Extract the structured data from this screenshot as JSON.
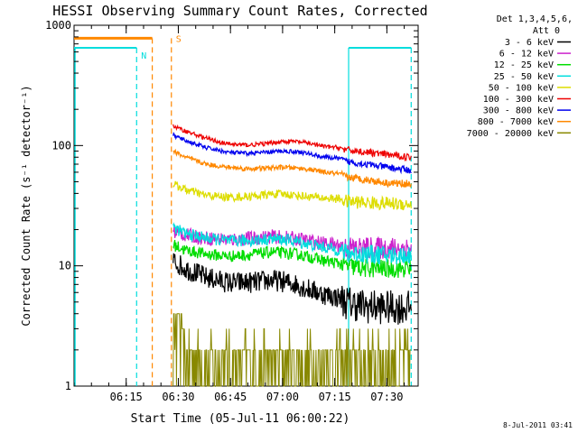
{
  "chart_data": {
    "type": "line",
    "title": "HESSI Observing Summary Count Rates, Corrected",
    "xlabel": "Start Time (05-Jul-11 06:00:22)",
    "ylabel": "Corrected Count Rate (s⁻¹ detector⁻¹)",
    "y_scale": "log",
    "ylim": [
      1,
      1000
    ],
    "xlim_minutes": [
      0,
      99
    ],
    "x_tick_labels": [
      "06:15",
      "06:30",
      "06:45",
      "07:00",
      "07:15",
      "07:30"
    ],
    "x_tick_minutes": [
      15,
      30,
      45,
      60,
      75,
      90
    ],
    "y_tick_labels": [
      "1",
      "10",
      "100",
      "1000"
    ],
    "y_tick_values": [
      1,
      10,
      100,
      1000
    ],
    "legend": {
      "placement": "right",
      "header_line1": "Det 1,3,4,5,6,",
      "header_line2": "Att 0"
    },
    "series": [
      {
        "name": "3 - 6 keV",
        "color": "#000000",
        "points": [
          [
            28.5,
            11
          ],
          [
            32,
            9.5
          ],
          [
            38,
            8
          ],
          [
            45,
            7.2
          ],
          [
            52,
            7.3
          ],
          [
            57,
            7.6
          ],
          [
            60,
            7.4
          ],
          [
            64,
            7
          ],
          [
            68,
            6.3
          ],
          [
            72,
            5.8
          ],
          [
            76.5,
            5.4
          ],
          [
            78,
            5
          ],
          [
            84,
            4.6
          ],
          [
            90,
            4.5
          ],
          [
            97,
            4.5
          ]
        ]
      },
      {
        "name": "6 - 12 keV",
        "color": "#cc22cc",
        "points": [
          [
            28.5,
            19.5
          ],
          [
            32,
            18
          ],
          [
            38,
            17
          ],
          [
            45,
            16.5
          ],
          [
            52,
            17
          ],
          [
            57,
            17.5
          ],
          [
            60,
            17.2
          ],
          [
            64,
            16.8
          ],
          [
            68,
            16
          ],
          [
            72,
            15.3
          ],
          [
            76.5,
            14.8
          ],
          [
            78,
            14.2
          ],
          [
            84,
            14
          ],
          [
            90,
            14
          ],
          [
            97,
            14
          ]
        ]
      },
      {
        "name": "12 - 25 keV",
        "color": "#00dd00",
        "points": [
          [
            28.5,
            15
          ],
          [
            32,
            13.5
          ],
          [
            38,
            12.5
          ],
          [
            45,
            12
          ],
          [
            52,
            12.5
          ],
          [
            57,
            13
          ],
          [
            60,
            12.8
          ],
          [
            64,
            12.5
          ],
          [
            68,
            11.8
          ],
          [
            72,
            11
          ],
          [
            76.5,
            10.5
          ],
          [
            78,
            10
          ],
          [
            84,
            9.5
          ],
          [
            90,
            9.5
          ],
          [
            97,
            9.5
          ]
        ]
      },
      {
        "name": "25 - 50 keV",
        "color": "#00dddd",
        "points": [
          [
            28.5,
            21
          ],
          [
            32,
            18.5
          ],
          [
            38,
            17
          ],
          [
            45,
            16
          ],
          [
            52,
            16.3
          ],
          [
            57,
            16.8
          ],
          [
            60,
            16.5
          ],
          [
            64,
            16
          ],
          [
            68,
            15
          ],
          [
            72,
            14.2
          ],
          [
            76.5,
            13.5
          ],
          [
            78,
            12.8
          ],
          [
            84,
            12.5
          ],
          [
            90,
            12.2
          ],
          [
            97,
            12.3
          ]
        ]
      },
      {
        "name": "50 - 100 keV",
        "color": "#dddd00",
        "points": [
          [
            28.5,
            48
          ],
          [
            32,
            43
          ],
          [
            38,
            38.5
          ],
          [
            45,
            37
          ],
          [
            52,
            38
          ],
          [
            57,
            39.5
          ],
          [
            60,
            39.5
          ],
          [
            64,
            38.5
          ],
          [
            68,
            37.5
          ],
          [
            72,
            36.5
          ],
          [
            76.5,
            36
          ],
          [
            78,
            34.5
          ],
          [
            84,
            33.5
          ],
          [
            90,
            33
          ],
          [
            97,
            32.5
          ]
        ]
      },
      {
        "name": "100 - 300 keV",
        "color": "#ee0000",
        "points": [
          [
            28.5,
            145
          ],
          [
            32,
            132
          ],
          [
            38,
            115
          ],
          [
            44,
            103
          ],
          [
            50,
            101
          ],
          [
            56,
            104
          ],
          [
            60,
            108
          ],
          [
            64,
            108
          ],
          [
            68,
            104
          ],
          [
            72,
            98
          ],
          [
            76.5,
            96
          ],
          [
            78,
            92
          ],
          [
            84,
            88
          ],
          [
            90,
            84
          ],
          [
            97,
            80
          ]
        ]
      },
      {
        "name": "300 - 800 keV",
        "color": "#0000ee",
        "points": [
          [
            28.5,
            122
          ],
          [
            32,
            110
          ],
          [
            38,
            96
          ],
          [
            44,
            88
          ],
          [
            50,
            86
          ],
          [
            56,
            88
          ],
          [
            60,
            90
          ],
          [
            64,
            89
          ],
          [
            68,
            85
          ],
          [
            72,
            80
          ],
          [
            76.5,
            78
          ],
          [
            78,
            74
          ],
          [
            84,
            70
          ],
          [
            90,
            66
          ],
          [
            97,
            62
          ]
        ]
      },
      {
        "name": "800 - 7000 keV",
        "color": "#ff8800",
        "points": [
          [
            28.5,
            90
          ],
          [
            32,
            80
          ],
          [
            38,
            70
          ],
          [
            44,
            66
          ],
          [
            50,
            64
          ],
          [
            56,
            65
          ],
          [
            60,
            66
          ],
          [
            64,
            65
          ],
          [
            68,
            63
          ],
          [
            72,
            60
          ],
          [
            76.5,
            58
          ],
          [
            78,
            55
          ],
          [
            84,
            52
          ],
          [
            90,
            49
          ],
          [
            97,
            48
          ]
        ]
      },
      {
        "name": "7000 - 20000 keV",
        "color": "#888800",
        "points": [
          [
            28.5,
            3
          ],
          [
            32,
            2
          ],
          [
            38,
            2
          ],
          [
            45,
            2
          ],
          [
            52,
            2
          ],
          [
            57,
            2
          ],
          [
            60,
            2
          ],
          [
            64,
            2
          ],
          [
            68,
            2
          ],
          [
            72,
            2
          ],
          [
            76.5,
            2
          ],
          [
            78,
            2
          ],
          [
            84,
            2
          ],
          [
            90,
            2
          ],
          [
            97,
            2
          ]
        ]
      }
    ],
    "annotations": {
      "saa_color": "#00dddd",
      "saa_label": "N",
      "attenuator_color": "#ff8800",
      "attenuator_label": "S",
      "night_intervals_minutes": [
        [
          0,
          18
        ],
        [
          79,
          97
        ]
      ],
      "saa_intervals_minutes": [
        [
          22.5,
          28
        ]
      ],
      "night_level": 650,
      "saa_level": 780
    },
    "grid": false
  },
  "timestamp": "8-Jul-2011 03:41"
}
